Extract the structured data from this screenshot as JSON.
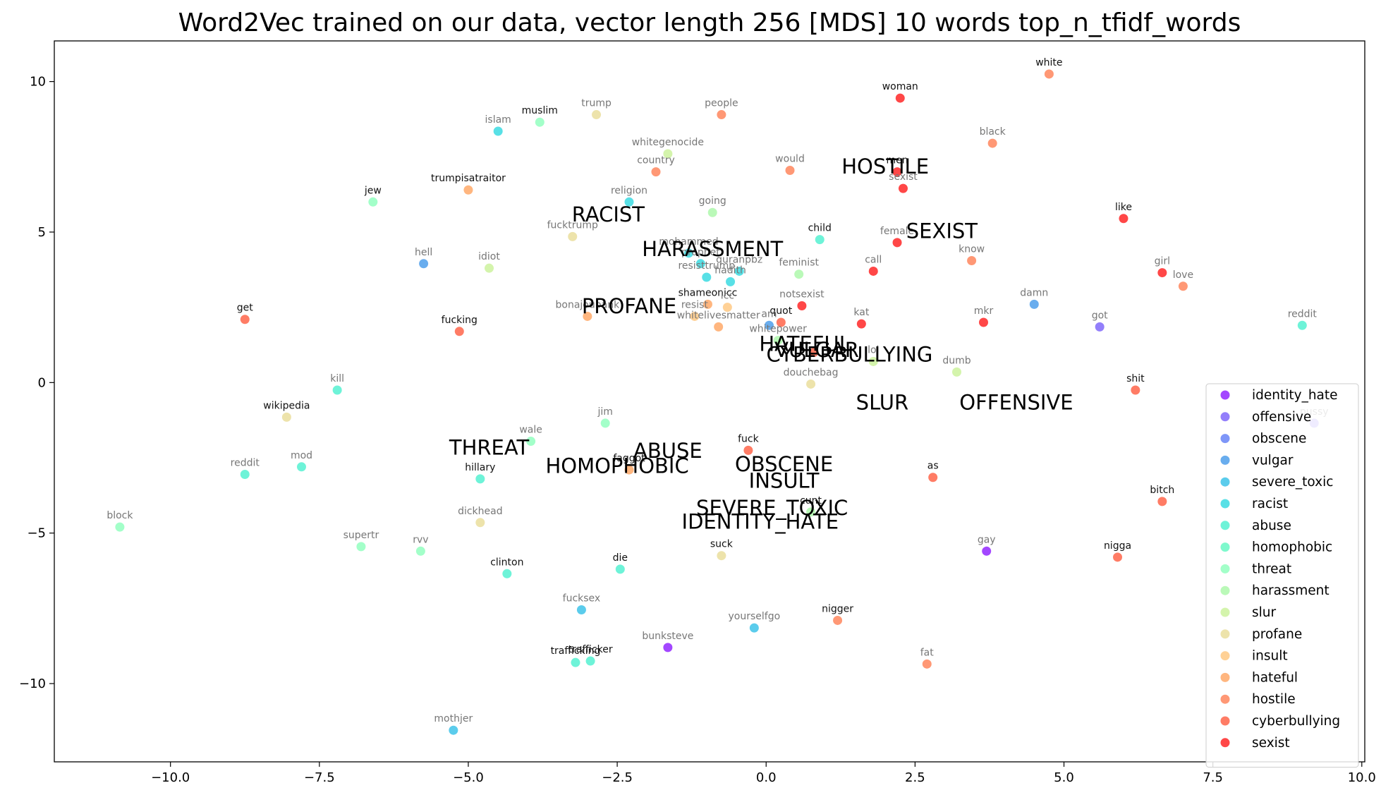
{
  "chart_data": {
    "type": "scatter",
    "title": "Word2Vec trained on our data, vector length 256 [MDS] 10 words top_n_tfidf_words",
    "xlabel": "",
    "ylabel": "",
    "xlim": [
      -11.95,
      10.05
    ],
    "ylim": [
      -12.6,
      11.35
    ],
    "xticks": [
      -10.0,
      -7.5,
      -5.0,
      -2.5,
      0.0,
      2.5,
      5.0,
      7.5,
      10.0
    ],
    "xtick_labels": [
      "−10.0",
      "−7.5",
      "−5.0",
      "−2.5",
      "0.0",
      "2.5",
      "5.0",
      "7.5",
      "10.0"
    ],
    "yticks": [
      10,
      5,
      0,
      -5,
      -10
    ],
    "ytick_labels": [
      "10",
      "5",
      "0",
      "−5",
      "−10"
    ],
    "grid": false,
    "legend_position": "lower-right",
    "categories": [
      "identity_hate",
      "offensive",
      "obscene",
      "vulgar",
      "severe_toxic",
      "racist",
      "abuse",
      "homophobic",
      "threat",
      "harassment",
      "slur",
      "profane",
      "insult",
      "hateful",
      "hostile",
      "cyberbullying",
      "sexist"
    ],
    "category_colors": {
      "identity_hate": "#8000ff",
      "offensive": "#6a4ef9",
      "obscene": "#4c6ef5",
      "vulgar": "#2f8ee8",
      "severe_toxic": "#1cb9e5",
      "racist": "#18d4dc",
      "abuse": "#36efc9",
      "homophobic": "#4ef7ba",
      "threat": "#80ffb4",
      "harassment": "#a0f79c",
      "slur": "#c4f08c",
      "profane": "#e6d88a",
      "insult": "#ffbf6e",
      "hateful": "#ff9a4e",
      "hostile": "#ff7040",
      "cyberbullying": "#ff4a2a",
      "sexist": "#ff0000"
    },
    "category_labels": [
      {
        "text": "RACIST",
        "x": -2.65,
        "y": 5.35
      },
      {
        "text": "HOSTILE",
        "x": 2.0,
        "y": 6.95
      },
      {
        "text": "SEXIST",
        "x": 2.95,
        "y": 4.8
      },
      {
        "text": "HARASSMENT",
        "x": -0.9,
        "y": 4.2
      },
      {
        "text": "PROFANE",
        "x": -2.3,
        "y": 2.3
      },
      {
        "text": "HATEFUL",
        "x": 0.65,
        "y": 1.05
      },
      {
        "text": "VULGAR",
        "x": 0.85,
        "y": 0.85
      },
      {
        "text": "CYBERBULLYING",
        "x": 1.4,
        "y": 0.7
      },
      {
        "text": "SLUR",
        "x": 1.95,
        "y": -0.9
      },
      {
        "text": "OFFENSIVE",
        "x": 4.2,
        "y": -0.9
      },
      {
        "text": "THREAT",
        "x": -4.65,
        "y": -2.4
      },
      {
        "text": "ABUSE",
        "x": -1.65,
        "y": -2.5
      },
      {
        "text": "HOMOPHOBIC",
        "x": -2.5,
        "y": -3.0
      },
      {
        "text": "OBSCENE",
        "x": 0.3,
        "y": -2.95
      },
      {
        "text": "INSULT",
        "x": 0.3,
        "y": -3.5
      },
      {
        "text": "SEVERE_TOXIC",
        "x": 0.1,
        "y": -4.4
      },
      {
        "text": "IDENTITY_HATE",
        "x": -0.1,
        "y": -4.85
      }
    ],
    "points": [
      {
        "word": "white",
        "x": 4.75,
        "y": 10.25,
        "category": "hostile",
        "label_style": "dark"
      },
      {
        "word": "woman",
        "x": 2.25,
        "y": 9.45,
        "category": "sexist",
        "label_style": "dark"
      },
      {
        "word": "trump",
        "x": -2.85,
        "y": 8.9,
        "category": "profane",
        "label_style": "grey"
      },
      {
        "word": "people",
        "x": -0.75,
        "y": 8.9,
        "category": "hostile",
        "label_style": "grey"
      },
      {
        "word": "islam",
        "x": -4.5,
        "y": 8.35,
        "category": "racist",
        "label_style": "grey"
      },
      {
        "word": "muslim",
        "x": -3.8,
        "y": 8.65,
        "category": "threat",
        "label_style": "dark"
      },
      {
        "word": "black",
        "x": 3.8,
        "y": 7.95,
        "category": "hostile",
        "label_style": "grey"
      },
      {
        "word": "whitegenocide",
        "x": -1.65,
        "y": 7.6,
        "category": "slur",
        "label_style": "grey"
      },
      {
        "word": "country",
        "x": -1.85,
        "y": 7.0,
        "category": "hostile",
        "label_style": "grey"
      },
      {
        "word": "would",
        "x": 0.4,
        "y": 7.05,
        "category": "hostile",
        "label_style": "grey"
      },
      {
        "word": "men",
        "x": 2.2,
        "y": 7.0,
        "category": "sexist",
        "label_style": "dark"
      },
      {
        "word": "sexist",
        "x": 2.3,
        "y": 6.45,
        "category": "sexist",
        "label_style": "grey"
      },
      {
        "word": "trumpisatraitor",
        "x": -5.0,
        "y": 6.4,
        "category": "hateful",
        "label_style": "dark"
      },
      {
        "word": "jew",
        "x": -6.6,
        "y": 6.0,
        "category": "threat",
        "label_style": "dark"
      },
      {
        "word": "religion",
        "x": -2.3,
        "y": 6.0,
        "category": "racist",
        "label_style": "grey"
      },
      {
        "word": "going",
        "x": -0.9,
        "y": 5.65,
        "category": "harassment",
        "label_style": "grey"
      },
      {
        "word": "like",
        "x": 6.0,
        "y": 5.45,
        "category": "sexist",
        "label_style": "dark"
      },
      {
        "word": "fucktrump",
        "x": -3.25,
        "y": 4.85,
        "category": "profane",
        "label_style": "grey"
      },
      {
        "word": "child",
        "x": 0.9,
        "y": 4.75,
        "category": "abuse",
        "label_style": "dark"
      },
      {
        "word": "female",
        "x": 2.2,
        "y": 4.65,
        "category": "sexist",
        "label_style": "grey"
      },
      {
        "word": "mohammed",
        "x": -1.3,
        "y": 4.3,
        "category": "racist",
        "label_style": "grey"
      },
      {
        "word": "know",
        "x": 3.45,
        "y": 4.05,
        "category": "hostile",
        "label_style": "grey"
      },
      {
        "word": "hell",
        "x": -5.75,
        "y": 3.95,
        "category": "vulgar",
        "label_style": "grey"
      },
      {
        "word": "idiot",
        "x": -4.65,
        "y": 3.8,
        "category": "slur",
        "label_style": "grey"
      },
      {
        "word": "quranpbz",
        "x": -0.45,
        "y": 3.7,
        "category": "racist",
        "label_style": "grey"
      },
      {
        "word": "feminist",
        "x": 0.55,
        "y": 3.6,
        "category": "harassment",
        "label_style": "grey"
      },
      {
        "word": "call",
        "x": 1.8,
        "y": 3.7,
        "category": "sexist",
        "label_style": "grey"
      },
      {
        "word": "girl",
        "x": 6.65,
        "y": 3.65,
        "category": "sexist",
        "label_style": "grey"
      },
      {
        "word": "prophet",
        "x": -1.1,
        "y": 3.95,
        "category": "racist",
        "label_style": "grey"
      },
      {
        "word": "hadith",
        "x": -0.6,
        "y": 3.35,
        "category": "racist",
        "label_style": "grey"
      },
      {
        "word": "resisttrump",
        "x": -1.0,
        "y": 3.5,
        "category": "racist",
        "label_style": "grey"
      },
      {
        "word": "love",
        "x": 7.0,
        "y": 3.2,
        "category": "hostile",
        "label_style": "grey"
      },
      {
        "word": "notsexist",
        "x": 0.6,
        "y": 2.55,
        "category": "sexist",
        "label_style": "grey"
      },
      {
        "word": "shameonicc",
        "x": -0.98,
        "y": 2.6,
        "category": "hateful",
        "label_style": "dark"
      },
      {
        "word": "resist",
        "x": -1.2,
        "y": 2.2,
        "category": "insult",
        "label_style": "grey"
      },
      {
        "word": "icc",
        "x": -0.65,
        "y": 2.5,
        "category": "insult",
        "label_style": "grey"
      },
      {
        "word": "damn",
        "x": 4.5,
        "y": 2.6,
        "category": "vulgar",
        "label_style": "grey"
      },
      {
        "word": "get",
        "x": -8.75,
        "y": 2.1,
        "category": "cyberbullying",
        "label_style": "dark"
      },
      {
        "word": "bonajoubank",
        "x": -3.0,
        "y": 2.2,
        "category": "hateful",
        "label_style": "grey"
      },
      {
        "word": "quot",
        "x": 0.25,
        "y": 2.0,
        "category": "cyberbullying",
        "label_style": "dark"
      },
      {
        "word": "am",
        "x": 0.05,
        "y": 1.9,
        "category": "vulgar",
        "label_style": "grey"
      },
      {
        "word": "kat",
        "x": 1.6,
        "y": 1.95,
        "category": "sexist",
        "label_style": "grey"
      },
      {
        "word": "mkr",
        "x": 3.65,
        "y": 2.0,
        "category": "sexist",
        "label_style": "grey"
      },
      {
        "word": "got",
        "x": 5.6,
        "y": 1.85,
        "category": "offensive",
        "label_style": "grey"
      },
      {
        "word": "reddit",
        "x": 9.0,
        "y": 1.9,
        "category": "abuse",
        "label_style": "grey"
      },
      {
        "word": "fucking",
        "x": -5.15,
        "y": 1.7,
        "category": "cyberbullying",
        "label_style": "dark"
      },
      {
        "word": "whitelivesmatter",
        "x": -0.8,
        "y": 1.85,
        "category": "hateful",
        "label_style": "grey"
      },
      {
        "word": "whitepower",
        "x": 0.2,
        "y": 1.4,
        "category": "harassment",
        "label_style": "grey"
      },
      {
        "word": "faggot2",
        "x": 0.8,
        "y": 1.0,
        "category": "cyberbullying",
        "label_style": "grey"
      },
      {
        "word": "lol",
        "x": 1.8,
        "y": 0.7,
        "category": "slur",
        "label_style": "grey"
      },
      {
        "word": "dumb",
        "x": 3.2,
        "y": 0.35,
        "category": "slur",
        "label_style": "grey"
      },
      {
        "word": "douchebag",
        "x": 0.75,
        "y": -0.05,
        "category": "profane",
        "label_style": "grey"
      },
      {
        "word": "shit",
        "x": 6.2,
        "y": -0.25,
        "category": "cyberbullying",
        "label_style": "dark"
      },
      {
        "word": "kill",
        "x": -7.2,
        "y": -0.25,
        "category": "abuse",
        "label_style": "grey"
      },
      {
        "word": "wikipedia",
        "x": -8.05,
        "y": -1.15,
        "category": "profane",
        "label_style": "dark"
      },
      {
        "word": "jim",
        "x": -2.7,
        "y": -1.35,
        "category": "threat",
        "label_style": "grey"
      },
      {
        "word": "pussy",
        "x": 9.2,
        "y": -1.35,
        "category": "offensive",
        "label_style": "grey"
      },
      {
        "word": "wale",
        "x": -3.95,
        "y": -1.95,
        "category": "threat",
        "label_style": "grey"
      },
      {
        "word": "fuck",
        "x": -0.3,
        "y": -2.25,
        "category": "cyberbullying",
        "label_style": "dark"
      },
      {
        "word": "reddit",
        "x": -8.75,
        "y": -3.05,
        "category": "abuse",
        "label_style": "grey"
      },
      {
        "word": "mod",
        "x": -7.8,
        "y": -2.8,
        "category": "abuse",
        "label_style": "grey"
      },
      {
        "word": "faggot",
        "x": -2.3,
        "y": -2.9,
        "category": "hateful",
        "label_style": "dark"
      },
      {
        "word": "hillary",
        "x": -4.8,
        "y": -3.2,
        "category": "abuse",
        "label_style": "dark"
      },
      {
        "word": "as",
        "x": 2.8,
        "y": -3.15,
        "category": "cyberbullying",
        "label_style": "dark"
      },
      {
        "word": "bitch",
        "x": 6.65,
        "y": -3.95,
        "category": "cyberbullying",
        "label_style": "dark"
      },
      {
        "word": "cunt",
        "x": 0.75,
        "y": -4.3,
        "category": "harassment",
        "label_style": "dark"
      },
      {
        "word": "dickhead",
        "x": -4.8,
        "y": -4.65,
        "category": "profane",
        "label_style": "grey"
      },
      {
        "word": "block",
        "x": -10.85,
        "y": -4.8,
        "category": "threat",
        "label_style": "grey"
      },
      {
        "word": "supertr",
        "x": -6.8,
        "y": -5.45,
        "category": "threat",
        "label_style": "grey"
      },
      {
        "word": "rvv",
        "x": -5.8,
        "y": -5.6,
        "category": "threat",
        "label_style": "grey"
      },
      {
        "word": "gay",
        "x": 3.7,
        "y": -5.6,
        "category": "identity_hate",
        "label_style": "grey"
      },
      {
        "word": "suck",
        "x": -0.75,
        "y": -5.75,
        "category": "profane",
        "label_style": "dark"
      },
      {
        "word": "nigga",
        "x": 5.9,
        "y": -5.8,
        "category": "cyberbullying",
        "label_style": "dark"
      },
      {
        "word": "die",
        "x": -2.45,
        "y": -6.2,
        "category": "abuse",
        "label_style": "dark"
      },
      {
        "word": "clinton",
        "x": -4.35,
        "y": -6.35,
        "category": "abuse",
        "label_style": "dark"
      },
      {
        "word": "fucksex",
        "x": -3.1,
        "y": -7.55,
        "category": "severe_toxic",
        "label_style": "grey"
      },
      {
        "word": "nigger",
        "x": 1.2,
        "y": -7.9,
        "category": "hostile",
        "label_style": "dark"
      },
      {
        "word": "yourselfgo",
        "x": -0.2,
        "y": -8.15,
        "category": "severe_toxic",
        "label_style": "grey"
      },
      {
        "word": "bunksteve",
        "x": -1.65,
        "y": -8.8,
        "category": "identity_hate",
        "label_style": "grey"
      },
      {
        "word": "trafficking",
        "x": -3.2,
        "y": -9.3,
        "category": "abuse",
        "label_style": "dark"
      },
      {
        "word": "trafficker",
        "x": -2.95,
        "y": -9.25,
        "category": "abuse",
        "label_style": "dark"
      },
      {
        "word": "fat",
        "x": 2.7,
        "y": -9.35,
        "category": "hostile",
        "label_style": "grey"
      },
      {
        "word": "mothjer",
        "x": -5.25,
        "y": -11.55,
        "category": "severe_toxic",
        "label_style": "grey"
      }
    ]
  }
}
